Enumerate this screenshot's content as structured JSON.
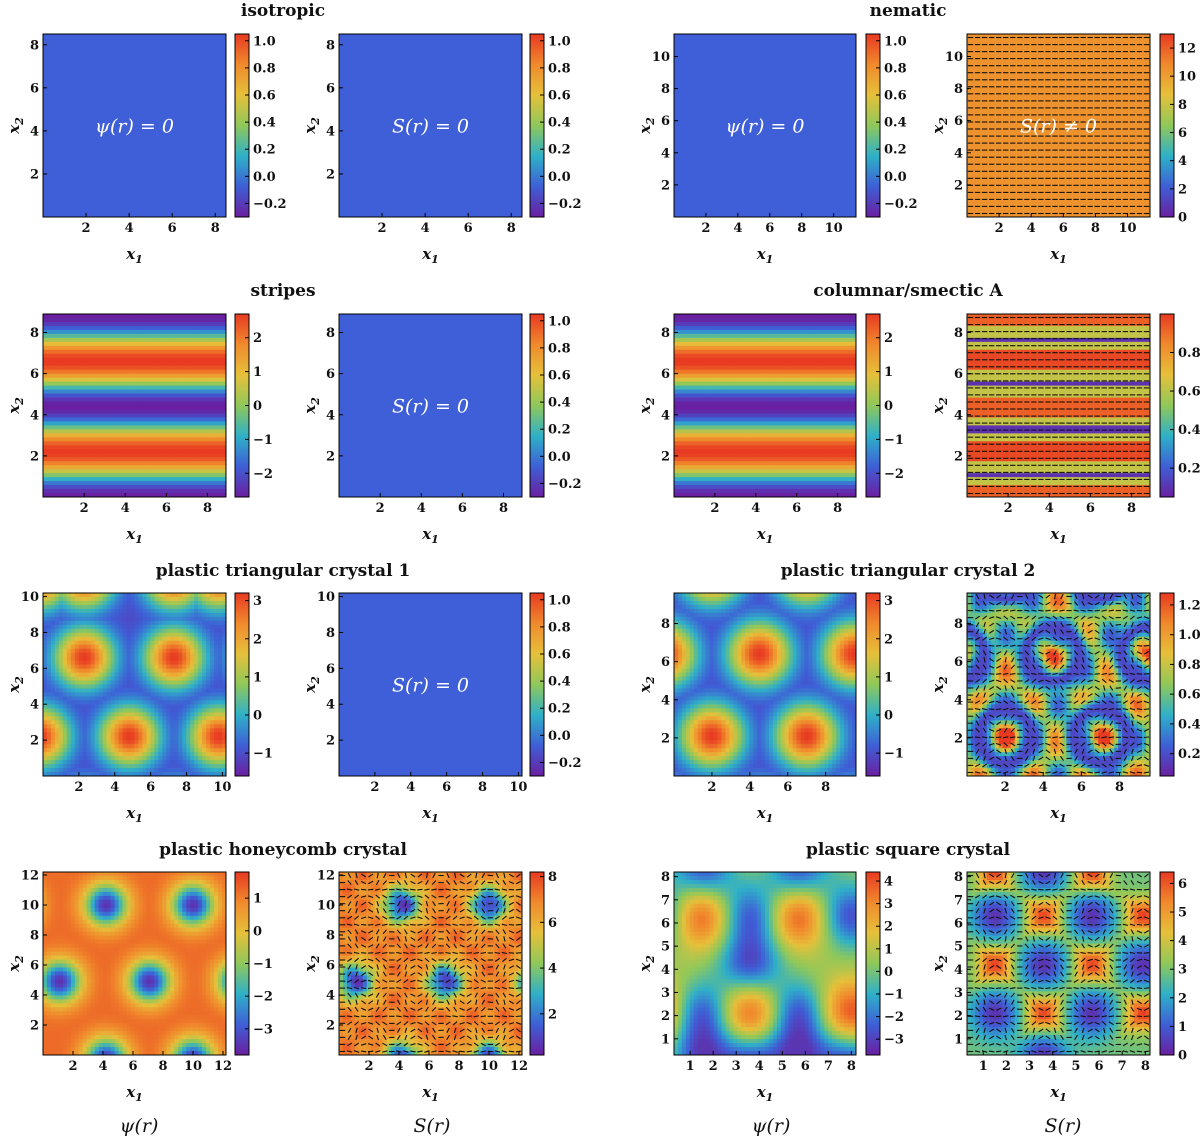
{
  "footer_labels": [
    "ψ(r)",
    "S(r)",
    "ψ(r)",
    "S(r)"
  ],
  "colormap": [
    "#6a1fa0",
    "#3e5fd6",
    "#2fb0c8",
    "#8fc85a",
    "#e6c03a",
    "#f08a2c",
    "#e83a22"
  ],
  "blank_color": "#3f5fd8",
  "arrow_color": "#111111",
  "axis_labels": {
    "x": "x",
    "x_sub": "1",
    "y": "x",
    "y_sub": "2"
  },
  "chart_data": [
    {
      "title": "isotropic",
      "type": "heatmap",
      "psi": {
        "field": "zero",
        "xlim": [
          0,
          8.5
        ],
        "ylim": [
          0,
          8.5
        ],
        "xticks": [
          "2",
          "4",
          "6",
          "8"
        ],
        "yticks": [
          "2",
          "4",
          "6",
          "8"
        ],
        "colorbar": {
          "range": [
            -0.3,
            1.05
          ],
          "ticks": [
            "1.0",
            "0.8",
            "0.6",
            "0.4",
            "0.2",
            "0.0",
            "−0.2"
          ]
        },
        "annotation": "ψ(r) = 0"
      },
      "S": {
        "field": "zero",
        "xlim": [
          0,
          8.5
        ],
        "ylim": [
          0,
          8.5
        ],
        "xticks": [
          "2",
          "4",
          "6",
          "8"
        ],
        "yticks": [
          "2",
          "4",
          "6",
          "8"
        ],
        "colorbar": {
          "range": [
            -0.3,
            1.05
          ],
          "ticks": [
            "1.0",
            "0.8",
            "0.6",
            "0.4",
            "0.2",
            "0.0",
            "−0.2"
          ]
        },
        "annotation": "S(r) = 0"
      }
    },
    {
      "title": "nematic",
      "type": "heatmap",
      "psi": {
        "field": "zero",
        "xlim": [
          0,
          11.4
        ],
        "ylim": [
          0,
          11.4
        ],
        "xticks": [
          "2",
          "4",
          "6",
          "8",
          "10"
        ],
        "yticks": [
          "2",
          "4",
          "6",
          "8",
          "10"
        ],
        "colorbar": {
          "range": [
            -0.3,
            1.05
          ],
          "ticks": [
            "1.0",
            "0.8",
            "0.6",
            "0.4",
            "0.2",
            "0.0",
            "−0.2"
          ]
        },
        "annotation": "ψ(r) = 0"
      },
      "S": {
        "field": "nematic",
        "xlim": [
          0,
          11.4
        ],
        "ylim": [
          0,
          11.4
        ],
        "xticks": [
          "2",
          "4",
          "6",
          "8",
          "10"
        ],
        "yticks": [
          "2",
          "4",
          "6",
          "8",
          "10"
        ],
        "colorbar": {
          "range": [
            0,
            13
          ],
          "ticks": [
            "12",
            "10",
            "8",
            "6",
            "4",
            "2",
            "0"
          ]
        },
        "annotation": "S(r) ≠ 0",
        "arrows": true,
        "value": 10.5
      }
    },
    {
      "title": "stripes",
      "type": "heatmap",
      "psi": {
        "field": "stripes",
        "xlim": [
          0,
          8.9
        ],
        "ylim": [
          0,
          8.9
        ],
        "xticks": [
          "2",
          "4",
          "6",
          "8"
        ],
        "yticks": [
          "2",
          "4",
          "6",
          "8"
        ],
        "colorbar": {
          "range": [
            -2.7,
            2.7
          ],
          "ticks": [
            "2",
            "1",
            "0",
            "−1",
            "−2"
          ]
        }
      },
      "S": {
        "field": "zero",
        "xlim": [
          0,
          8.9
        ],
        "ylim": [
          0,
          8.9
        ],
        "xticks": [
          "2",
          "4",
          "6",
          "8"
        ],
        "yticks": [
          "2",
          "4",
          "6",
          "8"
        ],
        "colorbar": {
          "range": [
            -0.3,
            1.05
          ],
          "ticks": [
            "1.0",
            "0.8",
            "0.6",
            "0.4",
            "0.2",
            "0.0",
            "−0.2"
          ]
        },
        "annotation": "S(r) = 0"
      }
    },
    {
      "title": "columnar/smectic A",
      "type": "heatmap",
      "psi": {
        "field": "stripes",
        "xlim": [
          0,
          8.9
        ],
        "ylim": [
          0,
          8.9
        ],
        "xticks": [
          "2",
          "4",
          "6",
          "8"
        ],
        "yticks": [
          "2",
          "4",
          "6",
          "8"
        ],
        "colorbar": {
          "range": [
            -2.7,
            2.7
          ],
          "ticks": [
            "2",
            "1",
            "0",
            "−1",
            "−2"
          ]
        }
      },
      "S": {
        "field": "smectic",
        "xlim": [
          0,
          8.9
        ],
        "ylim": [
          0,
          8.9
        ],
        "xticks": [
          "2",
          "4",
          "6",
          "8"
        ],
        "yticks": [
          "2",
          "4",
          "6",
          "8"
        ],
        "colorbar": {
          "range": [
            0.05,
            1.0
          ],
          "ticks": [
            "0.8",
            "0.6",
            "0.4",
            "0.2"
          ]
        },
        "arrows": true
      }
    },
    {
      "title": "plastic triangular crystal 1",
      "type": "heatmap",
      "psi": {
        "field": "tri1",
        "xlim": [
          0,
          10.2
        ],
        "ylim": [
          0,
          10.2
        ],
        "xticks": [
          "2",
          "4",
          "6",
          "8",
          "10"
        ],
        "yticks": [
          "2",
          "4",
          "6",
          "8",
          "10"
        ],
        "colorbar": {
          "range": [
            -1.6,
            3.2
          ],
          "ticks": [
            "3",
            "2",
            "1",
            "0",
            "−1"
          ]
        }
      },
      "S": {
        "field": "zero",
        "xlim": [
          0,
          10.2
        ],
        "ylim": [
          0,
          10.2
        ],
        "xticks": [
          "2",
          "4",
          "6",
          "8",
          "10"
        ],
        "yticks": [
          "2",
          "4",
          "6",
          "8",
          "10"
        ],
        "colorbar": {
          "range": [
            -0.3,
            1.05
          ],
          "ticks": [
            "1.0",
            "0.8",
            "0.6",
            "0.4",
            "0.2",
            "0.0",
            "−0.2"
          ]
        },
        "annotation": "S(r) = 0"
      }
    },
    {
      "title": "plastic triangular crystal 2",
      "type": "heatmap",
      "psi": {
        "field": "tri2",
        "xlim": [
          0,
          9.6
        ],
        "ylim": [
          0,
          9.6
        ],
        "xticks": [
          "2",
          "4",
          "6",
          "8"
        ],
        "yticks": [
          "2",
          "4",
          "6",
          "8"
        ],
        "colorbar": {
          "range": [
            -1.6,
            3.2
          ],
          "ticks": [
            "3",
            "2",
            "1",
            "0",
            "−1"
          ]
        }
      },
      "S": {
        "field": "triS",
        "xlim": [
          0,
          9.6
        ],
        "ylim": [
          0,
          9.6
        ],
        "xticks": [
          "2",
          "4",
          "6",
          "8"
        ],
        "yticks": [
          "2",
          "4",
          "6",
          "8"
        ],
        "colorbar": {
          "range": [
            0.05,
            1.28
          ],
          "ticks": [
            "1.2",
            "1.0",
            "0.8",
            "0.6",
            "0.4",
            "0.2"
          ]
        },
        "arrows": true
      }
    },
    {
      "title": "plastic honeycomb crystal",
      "type": "heatmap",
      "psi": {
        "field": "honey",
        "xlim": [
          0,
          12.2
        ],
        "ylim": [
          0,
          12.2
        ],
        "xticks": [
          "2",
          "4",
          "6",
          "8",
          "10",
          "12"
        ],
        "yticks": [
          "2",
          "4",
          "6",
          "8",
          "10",
          "12"
        ],
        "colorbar": {
          "range": [
            -3.8,
            1.8
          ],
          "ticks": [
            "1",
            "0",
            "−1",
            "−2",
            "−3"
          ]
        }
      },
      "S": {
        "field": "honeyS",
        "xlim": [
          0,
          12.2
        ],
        "ylim": [
          0,
          12.2
        ],
        "xticks": [
          "2",
          "4",
          "6",
          "8",
          "10",
          "12"
        ],
        "yticks": [
          "2",
          "4",
          "6",
          "8",
          "10",
          "12"
        ],
        "colorbar": {
          "range": [
            0.2,
            8.2
          ],
          "ticks": [
            "8",
            "6",
            "4",
            "2"
          ]
        },
        "arrows": true
      }
    },
    {
      "title": "plastic square crystal",
      "type": "heatmap",
      "psi": {
        "field": "square",
        "xlim": [
          0.3,
          8.2
        ],
        "ylim": [
          0.3,
          8.2
        ],
        "xticks": [
          "1",
          "2",
          "3",
          "4",
          "5",
          "6",
          "7",
          "8"
        ],
        "yticks": [
          "1",
          "2",
          "3",
          "4",
          "5",
          "6",
          "7",
          "8"
        ],
        "colorbar": {
          "range": [
            -3.7,
            4.4
          ],
          "ticks": [
            "4",
            "3",
            "2",
            "1",
            "0",
            "−1",
            "−2",
            "−3"
          ]
        }
      },
      "S": {
        "field": "squareS",
        "xlim": [
          0.3,
          8.2
        ],
        "ylim": [
          0.3,
          8.2
        ],
        "xticks": [
          "1",
          "2",
          "3",
          "4",
          "5",
          "6",
          "7",
          "8"
        ],
        "yticks": [
          "1",
          "2",
          "3",
          "4",
          "5",
          "6",
          "7",
          "8"
        ],
        "colorbar": {
          "range": [
            0,
            6.4
          ],
          "ticks": [
            "6",
            "5",
            "4",
            "3",
            "2",
            "1",
            "0"
          ]
        },
        "arrows": true
      }
    }
  ]
}
